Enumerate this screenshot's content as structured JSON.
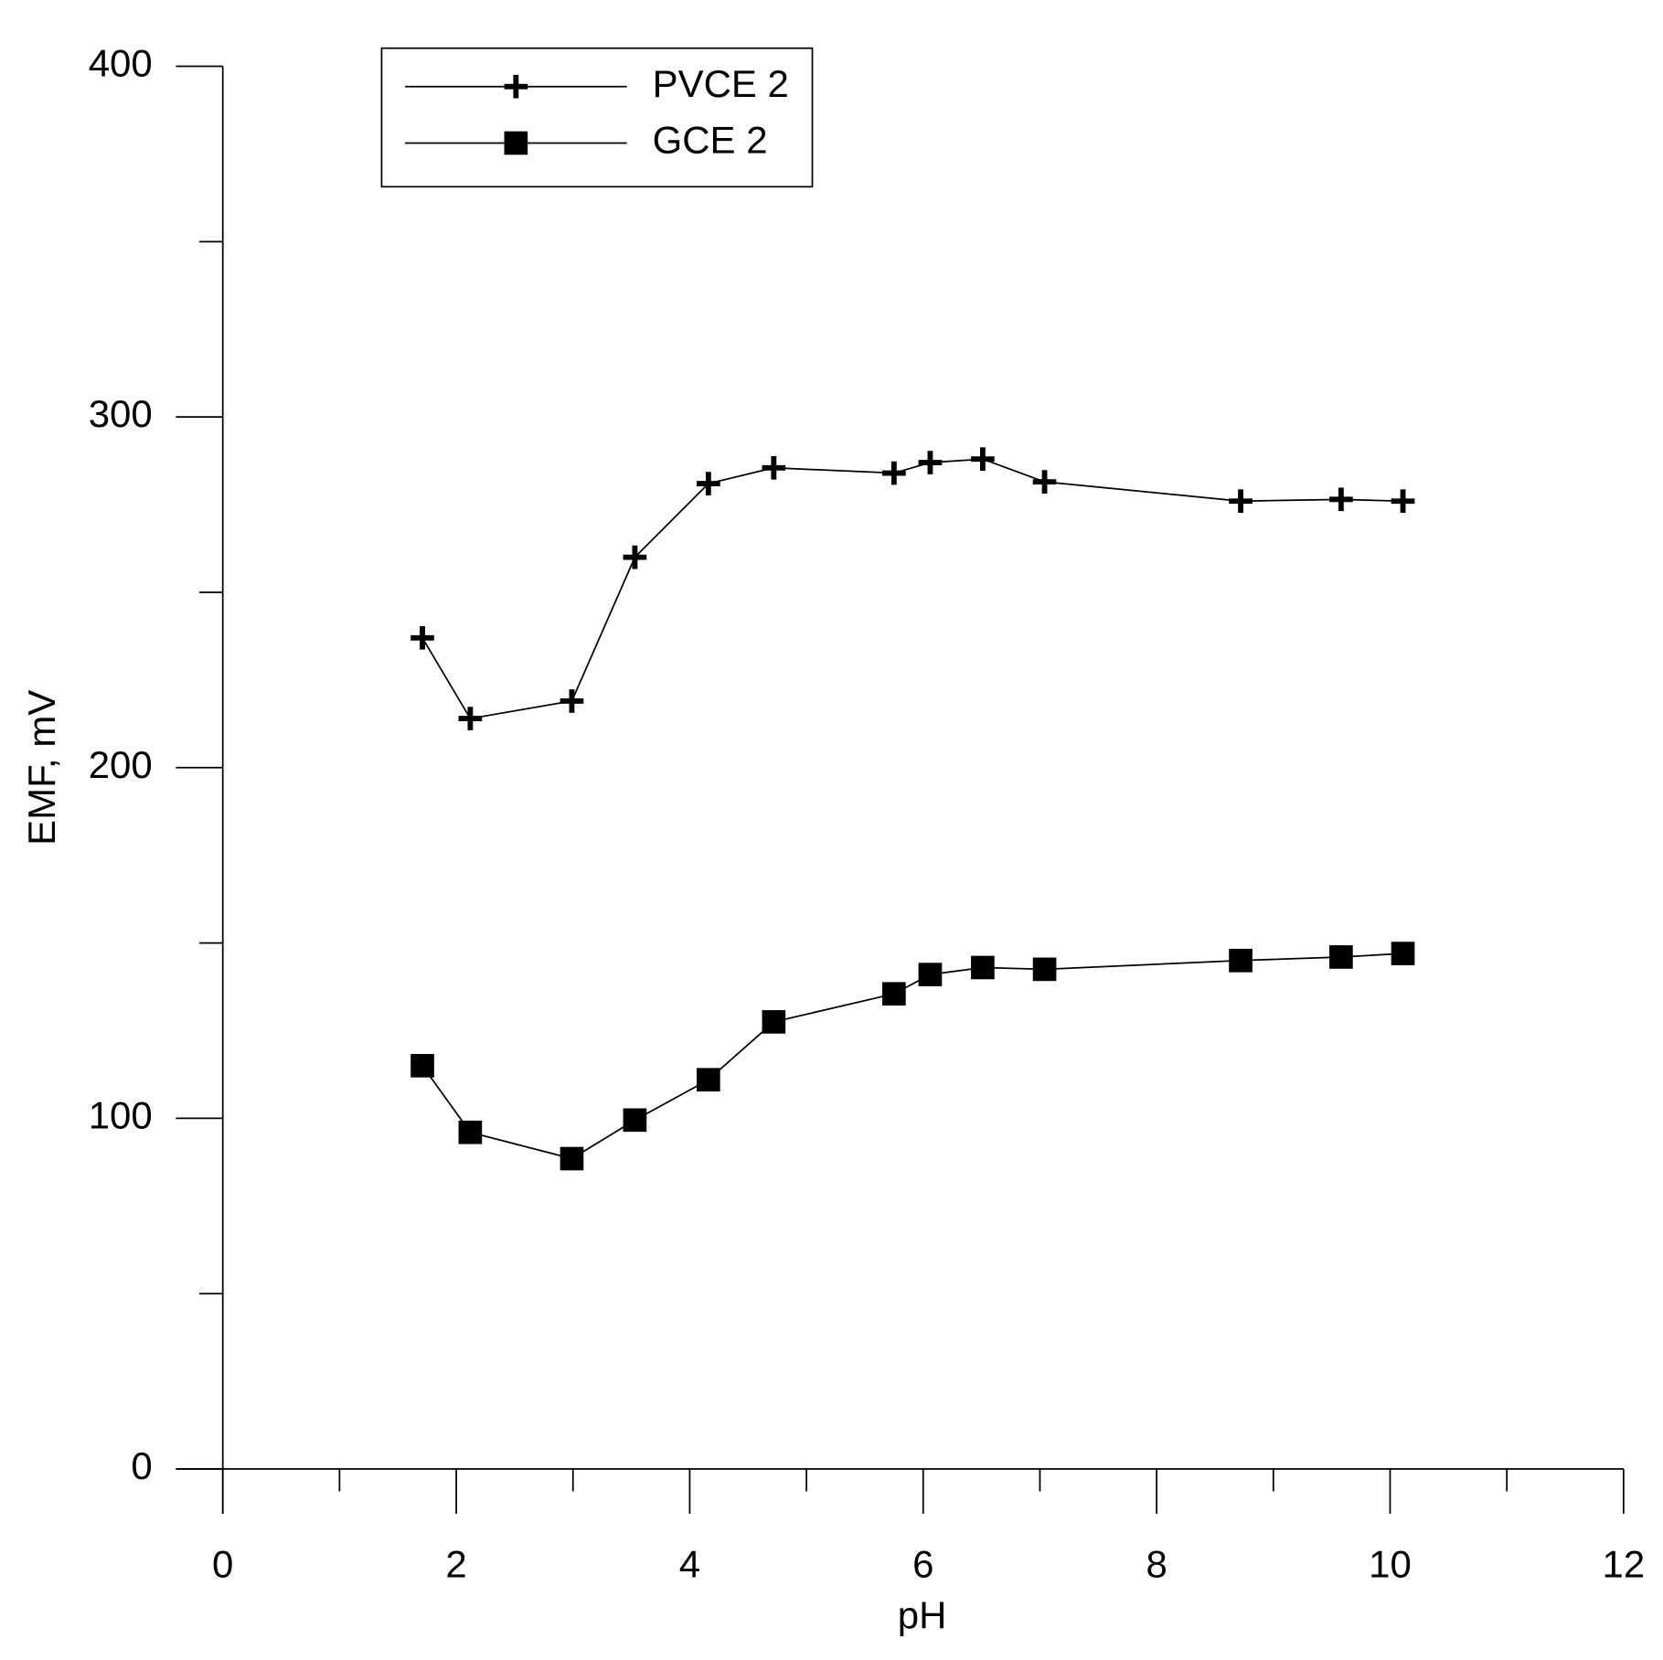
{
  "chart_data": {
    "type": "line",
    "x_label": "pH",
    "y_label": "EMF, mV",
    "xlim": [
      0,
      12
    ],
    "xticks": [
      0,
      2,
      4,
      6,
      8,
      10,
      12
    ],
    "xminor": [
      1,
      3,
      5,
      7,
      9,
      11
    ],
    "ylim": [
      0,
      400
    ],
    "yticks": [
      0,
      100,
      200,
      300,
      400
    ],
    "yminor": [
      50,
      150,
      250,
      350
    ],
    "legend": "top-left",
    "series": [
      {
        "name": "PVCE 2",
        "color": "#000000",
        "marker": "plus",
        "x": [
          1.71,
          2.12,
          2.99,
          3.53,
          4.16,
          4.72,
          5.75,
          6.06,
          6.51,
          7.04,
          8.72,
          9.58,
          10.11
        ],
        "values": [
          237,
          214,
          219,
          260,
          281,
          285.5,
          284,
          287,
          288,
          281.5,
          276,
          276.5,
          276
        ]
      },
      {
        "name": "GCE 2",
        "color": "#000000",
        "marker": "square",
        "x": [
          1.71,
          2.12,
          2.99,
          3.53,
          4.16,
          4.72,
          5.75,
          6.06,
          6.51,
          7.04,
          8.72,
          9.58,
          10.11
        ],
        "values": [
          115,
          96,
          88.5,
          99.5,
          111,
          127.5,
          135.5,
          141,
          143,
          142.5,
          145,
          146,
          147
        ]
      }
    ]
  }
}
